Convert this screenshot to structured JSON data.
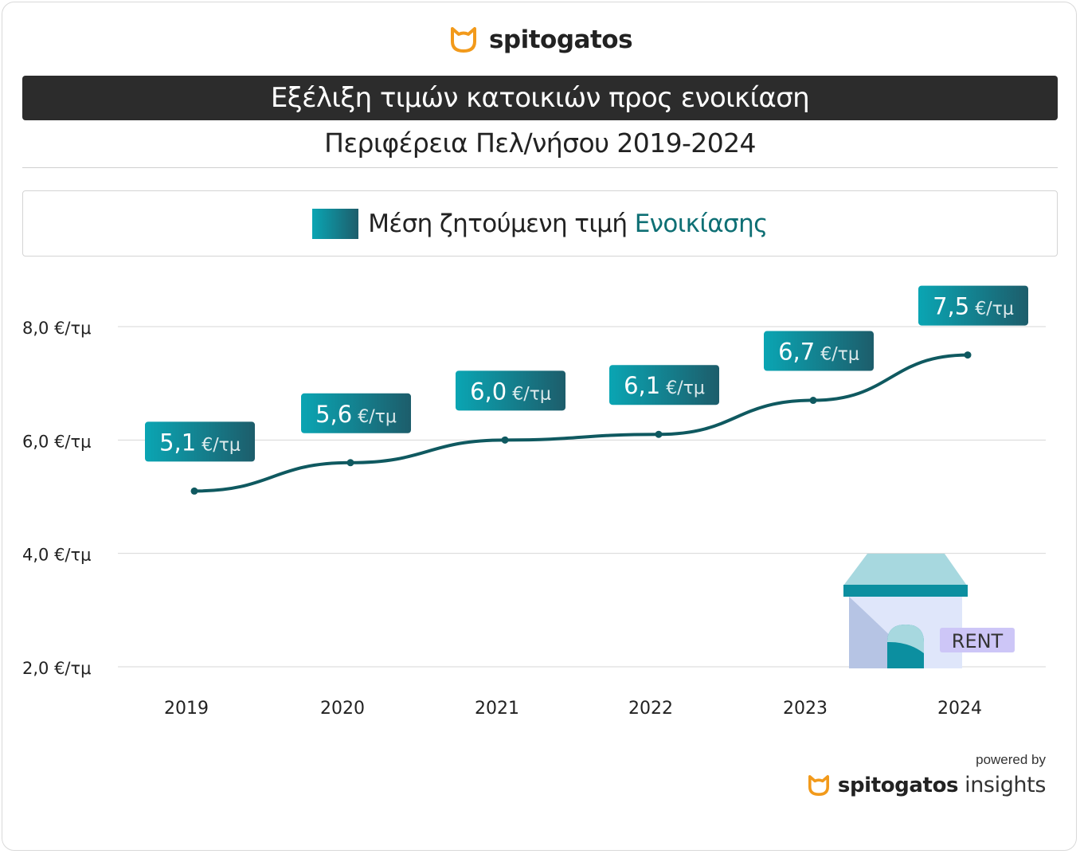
{
  "brand": {
    "name": "spitogatos",
    "logo_icon": "cat-head-icon",
    "logo_color": "#f29a1b"
  },
  "title": "Εξέλιξη τιμών κατοικιών προς ενοικίαση",
  "subtitle": "Περιφέρεια Πελ/νήσου 2019-2024",
  "legend": {
    "prefix": "Μέση ζητούμενη τιμή",
    "accent": "Ενοικίασης",
    "accent_color": "#0e6f74"
  },
  "chart_data": {
    "type": "line",
    "categories": [
      "2019",
      "2020",
      "2021",
      "2022",
      "2023",
      "2024"
    ],
    "series": [
      {
        "name": "Μέση ζητούμενη τιμή Ενοικίασης",
        "values": [
          5.1,
          5.6,
          6.0,
          6.1,
          6.7,
          7.5
        ]
      }
    ],
    "data_labels": [
      "5,1",
      "5,6",
      "6,0",
      "6,1",
      "6,7",
      "7,5"
    ],
    "unit": "€/τμ",
    "yticks": [
      8.0,
      6.0,
      4.0,
      2.0
    ],
    "ytick_labels": [
      "8,0 €/τμ",
      "6,0 €/τμ",
      "4,0 €/τμ",
      "2,0 €/τμ"
    ],
    "ylim": [
      2.0,
      8.0
    ],
    "grid": true,
    "line_color": "#0f5960",
    "label_gradient": [
      "#0aa5b3",
      "#1d5d6b"
    ]
  },
  "illustration": {
    "badge": "RENT",
    "icon": "rent-house-icon"
  },
  "footer": {
    "powered_by": "powered by",
    "brand": "spitogatos",
    "product": "insights"
  }
}
